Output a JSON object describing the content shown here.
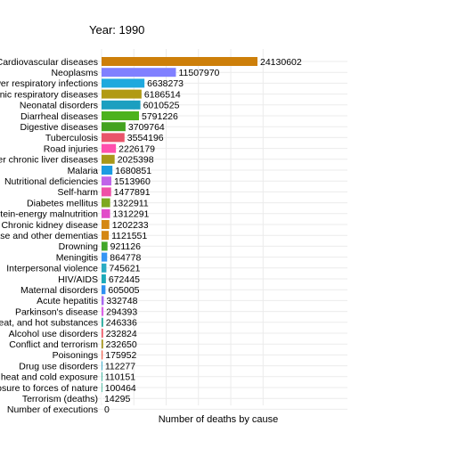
{
  "chart_data": {
    "type": "bar",
    "orientation": "horizontal",
    "title": "Year: 1990",
    "xlabel": "Number of deaths by cause",
    "ylabel": "",
    "grid": true,
    "legend": "none",
    "categories": [
      "Cardiovascular diseases",
      "Neoplasms",
      "Lower respiratory infections",
      "Chronic respiratory diseases",
      "Neonatal disorders",
      "Diarrheal diseases",
      "Digestive diseases",
      "Tuberculosis",
      "Road injuries",
      "Cirrhosis and other chronic liver diseases",
      "Malaria",
      "Nutritional deficiencies",
      "Self-harm",
      "Diabetes mellitus",
      "Protein-energy malnutrition",
      "Chronic kidney disease",
      "Alzheimer's disease and other dementias",
      "Drowning",
      "Meningitis",
      "Interpersonal violence",
      "HIV/AIDS",
      "Maternal disorders",
      "Acute hepatitis",
      "Parkinson's disease",
      "Fire, heat, and hot substances",
      "Alcohol use disorders",
      "Conflict and terrorism",
      "Poisonings",
      "Drug use disorders",
      "Environmental heat and cold exposure",
      "Exposure to forces of nature",
      "Terrorism (deaths)",
      "Number of executions"
    ],
    "values": [
      24130602,
      11507970,
      6638273,
      6186514,
      6010525,
      5791226,
      3709764,
      3554196,
      2226179,
      2025398,
      1680851,
      1513960,
      1477891,
      1322911,
      1312291,
      1202233,
      1121551,
      921126,
      864778,
      745621,
      672445,
      605005,
      332748,
      294393,
      246336,
      232824,
      232650,
      175952,
      112277,
      110151,
      100464,
      14295,
      0
    ],
    "value_labels": [
      "24130602",
      "11507970",
      "6638273",
      "6186514",
      "6010525",
      "5791226",
      "3709764",
      "3554196",
      "2226179",
      "2025398",
      "1680851",
      "1513960",
      "1477891",
      "1322911",
      "1312291",
      "1202233",
      "1121551",
      "921126",
      "864778",
      "745621",
      "672445",
      "605005",
      "332748",
      "294393",
      "246336",
      "232824",
      "232650",
      "175952",
      "112277",
      "110151",
      "100464",
      "14295",
      "0"
    ],
    "colors": [
      "#CD7F0A",
      "#8080FF",
      "#1FA9DE",
      "#B19A13",
      "#1C9FC0",
      "#4CB21E",
      "#43A21F",
      "#E9546A",
      "#FF4FAE",
      "#A8981A",
      "#1B9CE2",
      "#C063E9",
      "#EF4FA6",
      "#7DA920",
      "#E14CC9",
      "#D48714",
      "#D48714",
      "#42A62A",
      "#3595F4",
      "#2AABC3",
      "#1CAAB9",
      "#2E90F2",
      "#A866F0",
      "#DB61E8",
      "#21A99C",
      "#F05967",
      "#A49317",
      "#F26A58",
      "#1DA2C6",
      "#1FAD93",
      "#1FAF8D",
      "#FFFFFF",
      "#FFFFFF"
    ],
    "xlim": [
      0,
      28500000
    ]
  }
}
